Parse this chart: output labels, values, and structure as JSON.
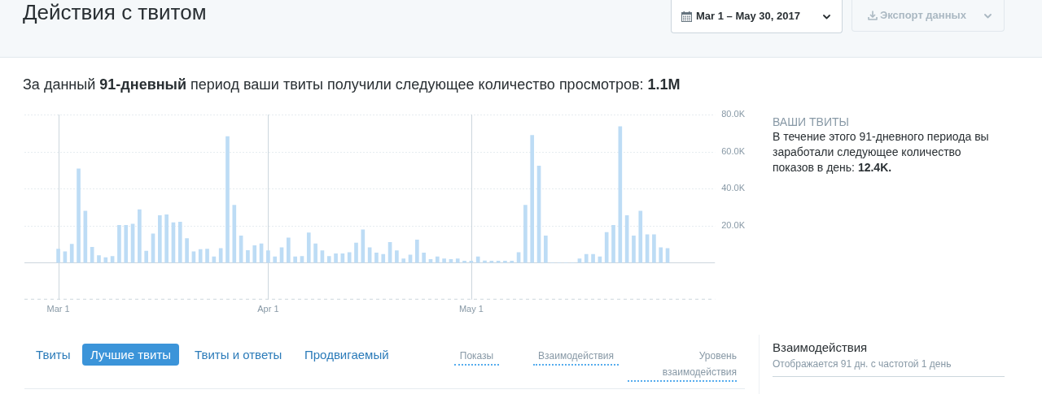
{
  "chart_data": {
    "type": "bar",
    "title": "Действия с твитом",
    "subtitle": "За данный 91-дневный период ваши твиты получили следующее количество просмотров: 1.1M",
    "x": [
      "2017-03-01",
      "2017-03-02",
      "2017-03-03",
      "2017-03-04",
      "2017-03-05",
      "2017-03-06",
      "2017-03-07",
      "2017-03-08",
      "2017-03-09",
      "2017-03-10",
      "2017-03-11",
      "2017-03-12",
      "2017-03-13",
      "2017-03-14",
      "2017-03-15",
      "2017-03-16",
      "2017-03-17",
      "2017-03-18",
      "2017-03-19",
      "2017-03-20",
      "2017-03-21",
      "2017-03-22",
      "2017-03-23",
      "2017-03-24",
      "2017-03-25",
      "2017-03-26",
      "2017-03-27",
      "2017-03-28",
      "2017-03-29",
      "2017-03-30",
      "2017-03-31",
      "2017-04-01",
      "2017-04-02",
      "2017-04-03",
      "2017-04-04",
      "2017-04-05",
      "2017-04-06",
      "2017-04-07",
      "2017-04-08",
      "2017-04-09",
      "2017-04-10",
      "2017-04-11",
      "2017-04-12",
      "2017-04-13",
      "2017-04-14",
      "2017-04-15",
      "2017-04-16",
      "2017-04-17",
      "2017-04-18",
      "2017-04-19",
      "2017-04-20",
      "2017-04-21",
      "2017-04-22",
      "2017-04-23",
      "2017-04-24",
      "2017-04-25",
      "2017-04-26",
      "2017-04-27",
      "2017-04-28",
      "2017-04-29",
      "2017-04-30",
      "2017-05-01",
      "2017-05-02",
      "2017-05-03",
      "2017-05-04",
      "2017-05-05",
      "2017-05-06",
      "2017-05-07",
      "2017-05-08",
      "2017-05-09",
      "2017-05-10",
      "2017-05-11",
      "2017-05-12",
      "2017-05-13",
      "2017-05-14",
      "2017-05-15",
      "2017-05-16",
      "2017-05-17",
      "2017-05-18",
      "2017-05-19",
      "2017-05-20",
      "2017-05-21",
      "2017-05-22",
      "2017-05-23",
      "2017-05-24",
      "2017-05-25",
      "2017-05-26",
      "2017-05-27",
      "2017-05-28",
      "2017-05-29",
      "2017-05-30"
    ],
    "values": [
      7300,
      5900,
      9900,
      50700,
      27800,
      8300,
      3800,
      2700,
      3400,
      20100,
      20100,
      20800,
      28600,
      6200,
      15500,
      25400,
      25900,
      21600,
      21900,
      13000,
      5900,
      7100,
      7300,
      3100,
      7600,
      68100,
      31000,
      14400,
      6600,
      9200,
      10200,
      6400,
      3100,
      8100,
      13400,
      3100,
      3400,
      16100,
      10200,
      6400,
      3400,
      4800,
      4800,
      5500,
      10600,
      17700,
      8100,
      5200,
      4500,
      10900,
      6400,
      2100,
      4100,
      12300,
      5200,
      1700,
      3100,
      2100,
      1700,
      2100,
      800,
      800,
      3100,
      1000,
      800,
      800,
      800,
      800,
      5500,
      31000,
      68800,
      52200,
      14400,
      0,
      0,
      0,
      0,
      2100,
      4500,
      4500,
      3100,
      16300,
      20100,
      73500,
      25400,
      14400,
      27800,
      15100,
      15100,
      8100,
      7600
    ],
    "color": "#bddcf5",
    "xlim": [
      "2017-02-24",
      "2017-06-06"
    ],
    "xticks": [
      {
        "value": "2017-03-01",
        "label": "Mar 1"
      },
      {
        "value": "2017-04-01",
        "label": "Apr 1"
      },
      {
        "value": "2017-05-01",
        "label": "May 1"
      }
    ],
    "ylim": [
      -20000,
      80000
    ],
    "yticks": [
      {
        "value": 0,
        "label": null
      },
      {
        "value": 20000,
        "label": "20.0K"
      },
      {
        "value": 40000,
        "label": "40.0K"
      },
      {
        "value": 60000,
        "label": "60.0K"
      },
      {
        "value": 80000,
        "label": "80.0K"
      }
    ],
    "grid": true,
    "annotations": [
      "Mar 1 – May 30, 2017",
      "Экспорт данных",
      "ВАШИ ТВИТЫ",
      "В течение этого 91-дневного периода вы заработали следующее количество показов в день: 12.4K.",
      "Твиты",
      "Лучшие твиты",
      "Твиты и ответы",
      "Продвигаемый",
      "Показы",
      "Взаимодействия",
      "Уровень взаимодействия",
      "Взаимодействия",
      "Отображается 91 дн. с частотой 1 день"
    ]
  }
}
